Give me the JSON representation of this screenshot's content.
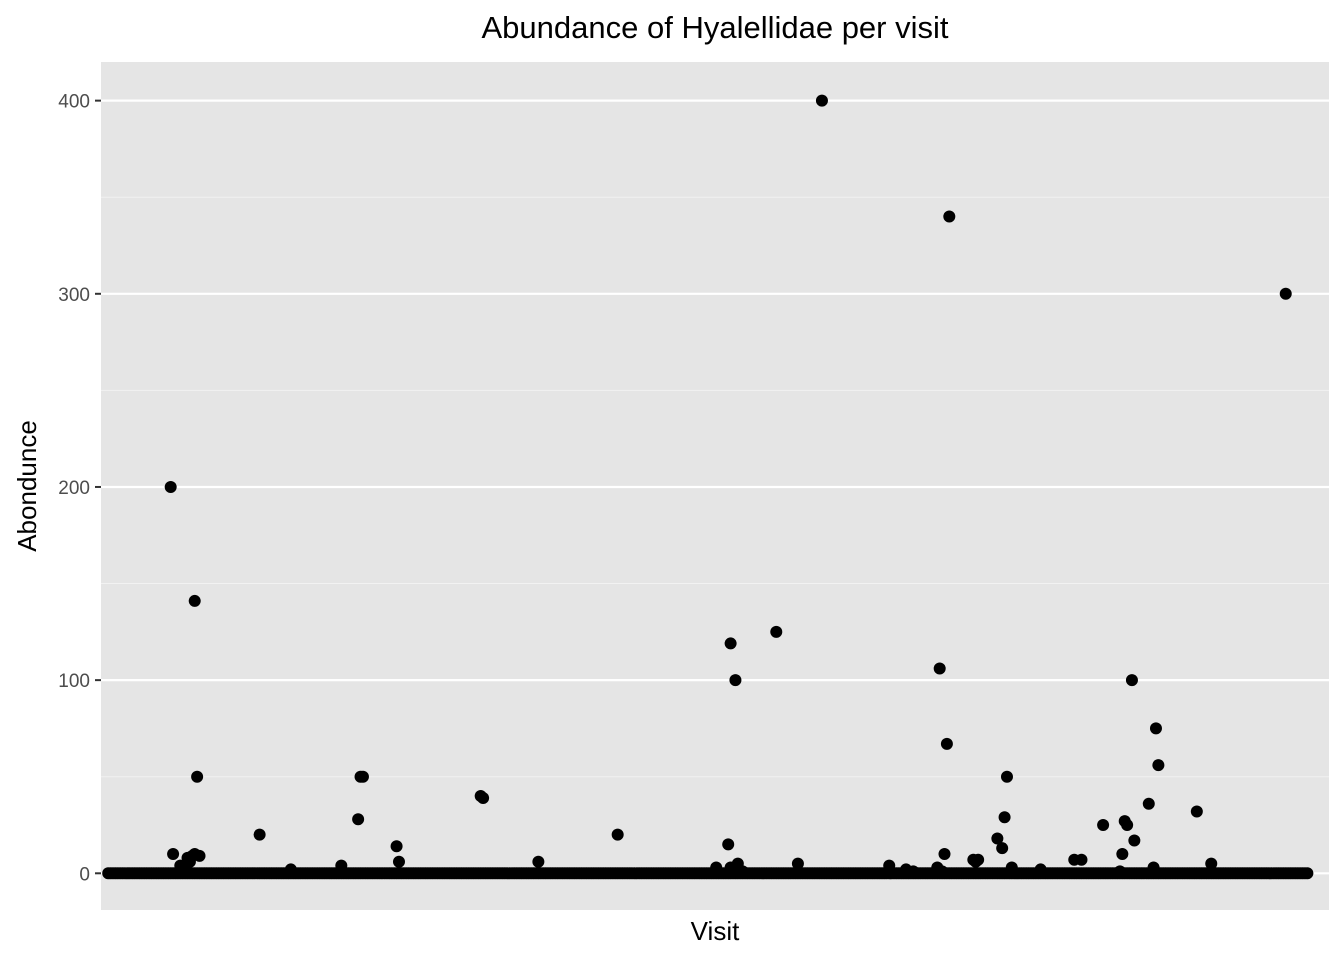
{
  "chart_data": {
    "type": "scatter",
    "title": "Abundance of Hyalellidae per visit",
    "xlabel": "Visit",
    "ylabel": "Abondunce",
    "ylim": [
      -19,
      420
    ],
    "yticks": [
      0,
      100,
      200,
      300,
      400
    ],
    "ytick_labels": [
      "0",
      "100",
      "200",
      "300",
      "400"
    ],
    "x_tick_labels_shown": false,
    "grid": true,
    "legend": "none",
    "n_visits": 500,
    "xlim": [
      -3,
      508
    ],
    "baseline_value": 0,
    "points": [
      [
        26,
        200
      ],
      [
        27,
        10
      ],
      [
        30,
        4
      ],
      [
        31,
        2
      ],
      [
        33,
        8
      ],
      [
        34,
        6
      ],
      [
        35,
        9
      ],
      [
        36,
        10
      ],
      [
        36,
        141
      ],
      [
        37,
        50
      ],
      [
        38,
        9
      ],
      [
        63,
        20
      ],
      [
        76,
        2
      ],
      [
        97,
        4
      ],
      [
        104,
        28
      ],
      [
        105,
        50
      ],
      [
        106,
        50
      ],
      [
        120,
        14
      ],
      [
        121,
        6
      ],
      [
        155,
        40
      ],
      [
        156,
        39
      ],
      [
        179,
        6
      ],
      [
        212,
        20
      ],
      [
        253,
        3
      ],
      [
        258,
        15
      ],
      [
        259,
        119
      ],
      [
        259,
        3
      ],
      [
        260,
        2
      ],
      [
        261,
        100
      ],
      [
        262,
        5
      ],
      [
        264,
        1
      ],
      [
        278,
        125
      ],
      [
        287,
        5
      ],
      [
        297,
        400
      ],
      [
        325,
        4
      ],
      [
        332,
        2
      ],
      [
        335,
        1
      ],
      [
        345,
        3
      ],
      [
        346,
        106
      ],
      [
        347,
        1
      ],
      [
        348,
        10
      ],
      [
        349,
        67
      ],
      [
        350,
        340
      ],
      [
        360,
        7
      ],
      [
        361,
        6
      ],
      [
        362,
        7
      ],
      [
        370,
        18
      ],
      [
        372,
        13
      ],
      [
        373,
        29
      ],
      [
        374,
        50
      ],
      [
        376,
        3
      ],
      [
        388,
        2
      ],
      [
        402,
        7
      ],
      [
        405,
        7
      ],
      [
        414,
        25
      ],
      [
        421,
        1
      ],
      [
        422,
        10
      ],
      [
        423,
        27
      ],
      [
        424,
        25
      ],
      [
        426,
        100
      ],
      [
        427,
        17
      ],
      [
        433,
        36
      ],
      [
        435,
        3
      ],
      [
        436,
        75
      ],
      [
        437,
        56
      ],
      [
        453,
        32
      ],
      [
        459,
        5
      ],
      [
        490,
        300
      ]
    ]
  }
}
